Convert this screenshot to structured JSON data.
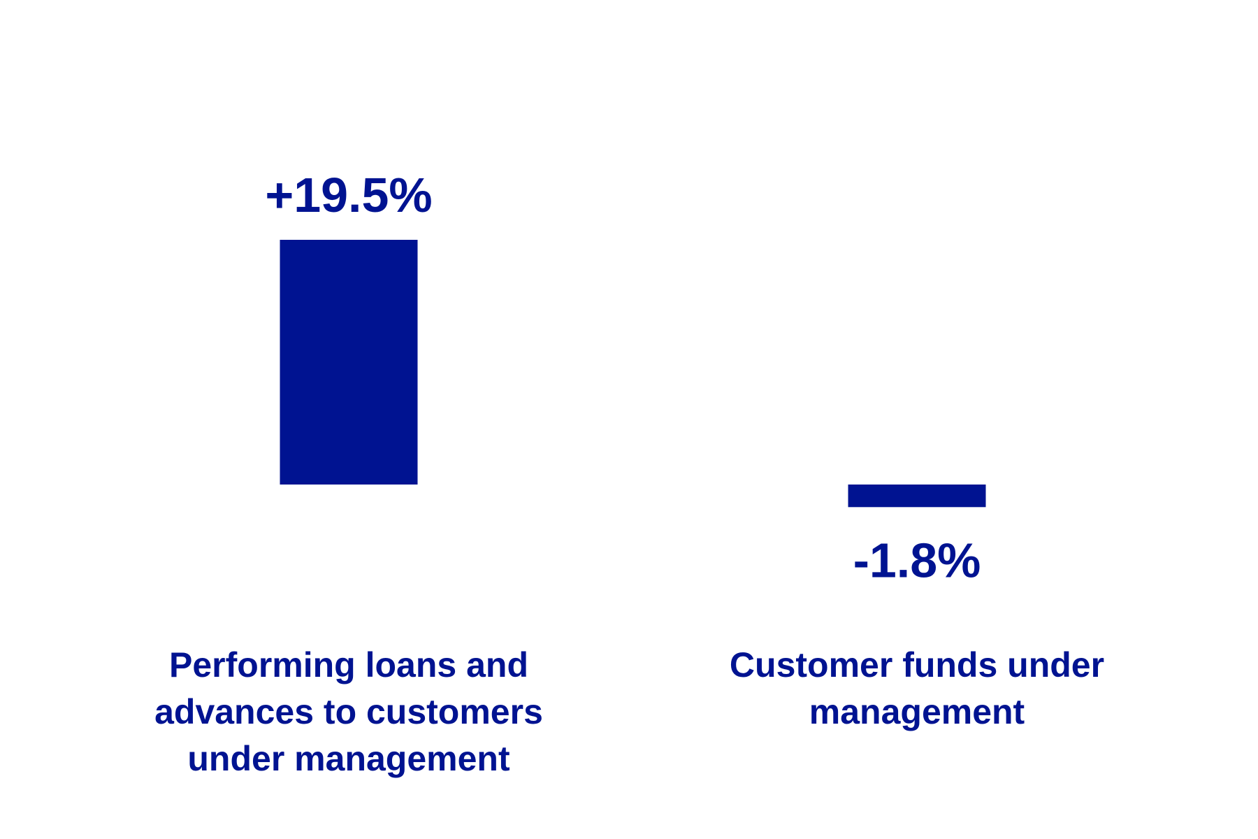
{
  "chart_data": {
    "type": "bar",
    "categories": [
      "Performing loans and advances to customers under management",
      "Customer funds under management"
    ],
    "values": [
      19.5,
      -1.8
    ],
    "value_labels": [
      "+19.5%",
      "-1.8%"
    ],
    "color": "#001391"
  }
}
